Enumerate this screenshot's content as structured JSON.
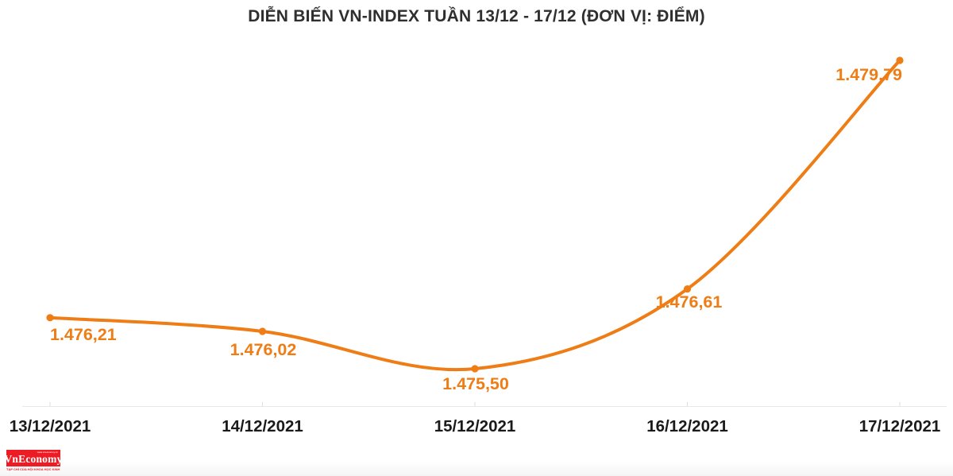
{
  "chart_data": {
    "type": "line",
    "title": "DIỄN BIẾN VN-INDEX TUẦN 13/12 - 17/12 (ĐƠN VỊ: ĐIỂM)",
    "categories": [
      "13/12/2021",
      "14/12/2021",
      "15/12/2021",
      "16/12/2021",
      "17/12/2021"
    ],
    "series": [
      {
        "name": "VN-Index",
        "values": [
          1476.21,
          1476.02,
          1475.5,
          1476.61,
          1479.79
        ]
      }
    ],
    "point_labels": [
      "1.476,21",
      "1.476,02",
      "1.475,50",
      "1.476,61",
      "1.479,79"
    ],
    "xlabel": "",
    "ylabel": "",
    "ylim": [
      1475.2,
      1480.2
    ],
    "grid": false,
    "legend": "none",
    "smooth": true,
    "colors": {
      "line": "#EE7D16",
      "point": "#EE7D16",
      "data_label": "#EE7D16",
      "axis_line": "#e8e8e8",
      "tick": "#dedede",
      "x_label": "#1a1a1a",
      "title": "#2f2f2f"
    }
  },
  "branding": {
    "logo_text": "VnEconomy",
    "logo_small_top": "www.vneconomy.vn",
    "tagline": "TẠP CHÍ CỦA HỘI KHOA HỌC KINH TẾ VIỆT NAM",
    "logo_bg": "#ED1C24",
    "logo_fg": "#ffffff"
  }
}
